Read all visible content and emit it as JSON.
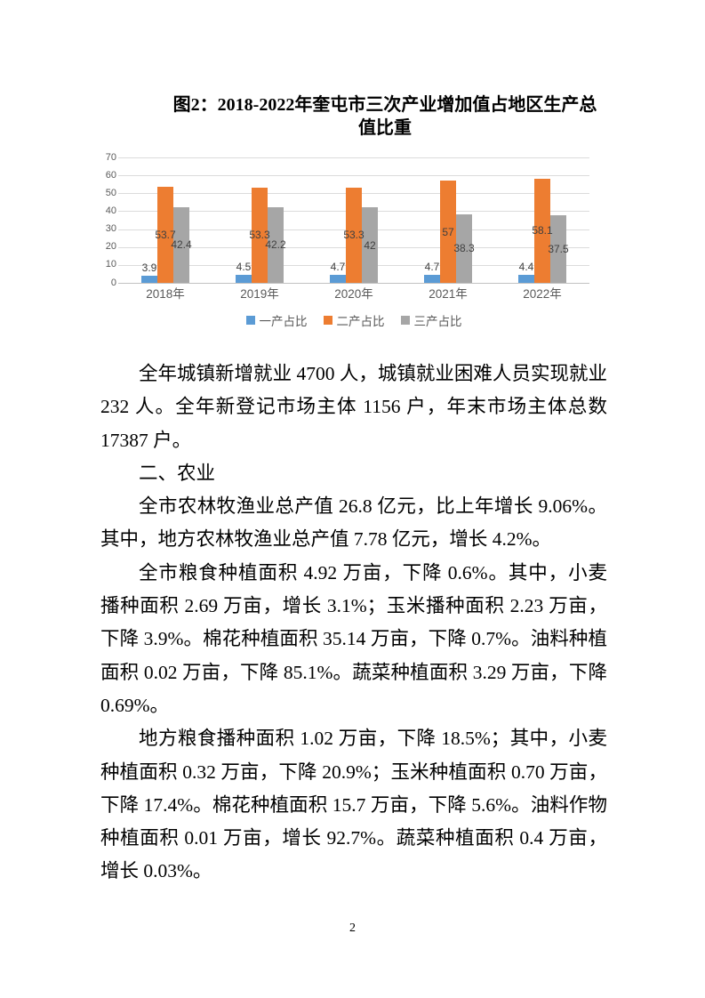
{
  "page": {
    "number": "2"
  },
  "figure": {
    "caption_line1": "图2：2018-2022年奎屯市三次产业增加值占地区生产总",
    "caption_line2": "值比重"
  },
  "chart_data": {
    "type": "bar",
    "title": "图2：2018-2022年奎屯市三次产业增加值占地区生产总值比重",
    "categories": [
      "2018年",
      "2019年",
      "2020年",
      "2021年",
      "2022年"
    ],
    "series": [
      {
        "name": "一产占比",
        "color": "#5B9BD5",
        "values": [
          3.9,
          4.5,
          4.7,
          4.7,
          4.4
        ]
      },
      {
        "name": "二产占比",
        "color": "#ED7D31",
        "values": [
          53.7,
          53.3,
          53.3,
          57,
          58.1
        ]
      },
      {
        "name": "三产占比",
        "color": "#A6A6A6",
        "values": [
          42.4,
          42.2,
          42,
          38.3,
          37.5
        ]
      }
    ],
    "ylim": [
      0,
      70
    ],
    "yticks": [
      0,
      10,
      20,
      30,
      40,
      50,
      60,
      70
    ],
    "grid": true,
    "legend_position": "bottom",
    "data_labels": true,
    "gridline_color": "#dbdbdb",
    "axis_text_color": "#595959",
    "data_label_color": "#404040"
  },
  "paragraphs": [
    {
      "heading": false,
      "text": "全年城镇新增就业 4700 人，城镇就业困难人员实现就业 232 人。全年新登记市场主体 1156 户，年末市场主体总数 17387 户。"
    },
    {
      "heading": true,
      "text": "二、农业"
    },
    {
      "heading": false,
      "text": "全市农林牧渔业总产值 26.8 亿元，比上年增长 9.06%。其中，地方农林牧渔业总产值 7.78 亿元，增长 4.2%。"
    },
    {
      "heading": false,
      "text": "全市粮食种植面积 4.92 万亩，下降 0.6%。其中，小麦播种面积 2.69 万亩，增长 3.1%；玉米播种面积 2.23 万亩，下降 3.9%。棉花种植面积 35.14 万亩，下降 0.7%。油料种植面积 0.02 万亩，下降 85.1%。蔬菜种植面积 3.29 万亩，下降 0.69%。"
    },
    {
      "heading": false,
      "text": "地方粮食播种面积 1.02 万亩，下降 18.5%；其中，小麦种植面积 0.32 万亩，下降 20.9%；玉米种植面积 0.70 万亩，下降 17.4%。棉花种植面积 15.7 万亩，下降 5.6%。油料作物种植面积 0.01 万亩，增长 92.7%。蔬菜种植面积 0.4 万亩，增长 0.03%。"
    }
  ]
}
